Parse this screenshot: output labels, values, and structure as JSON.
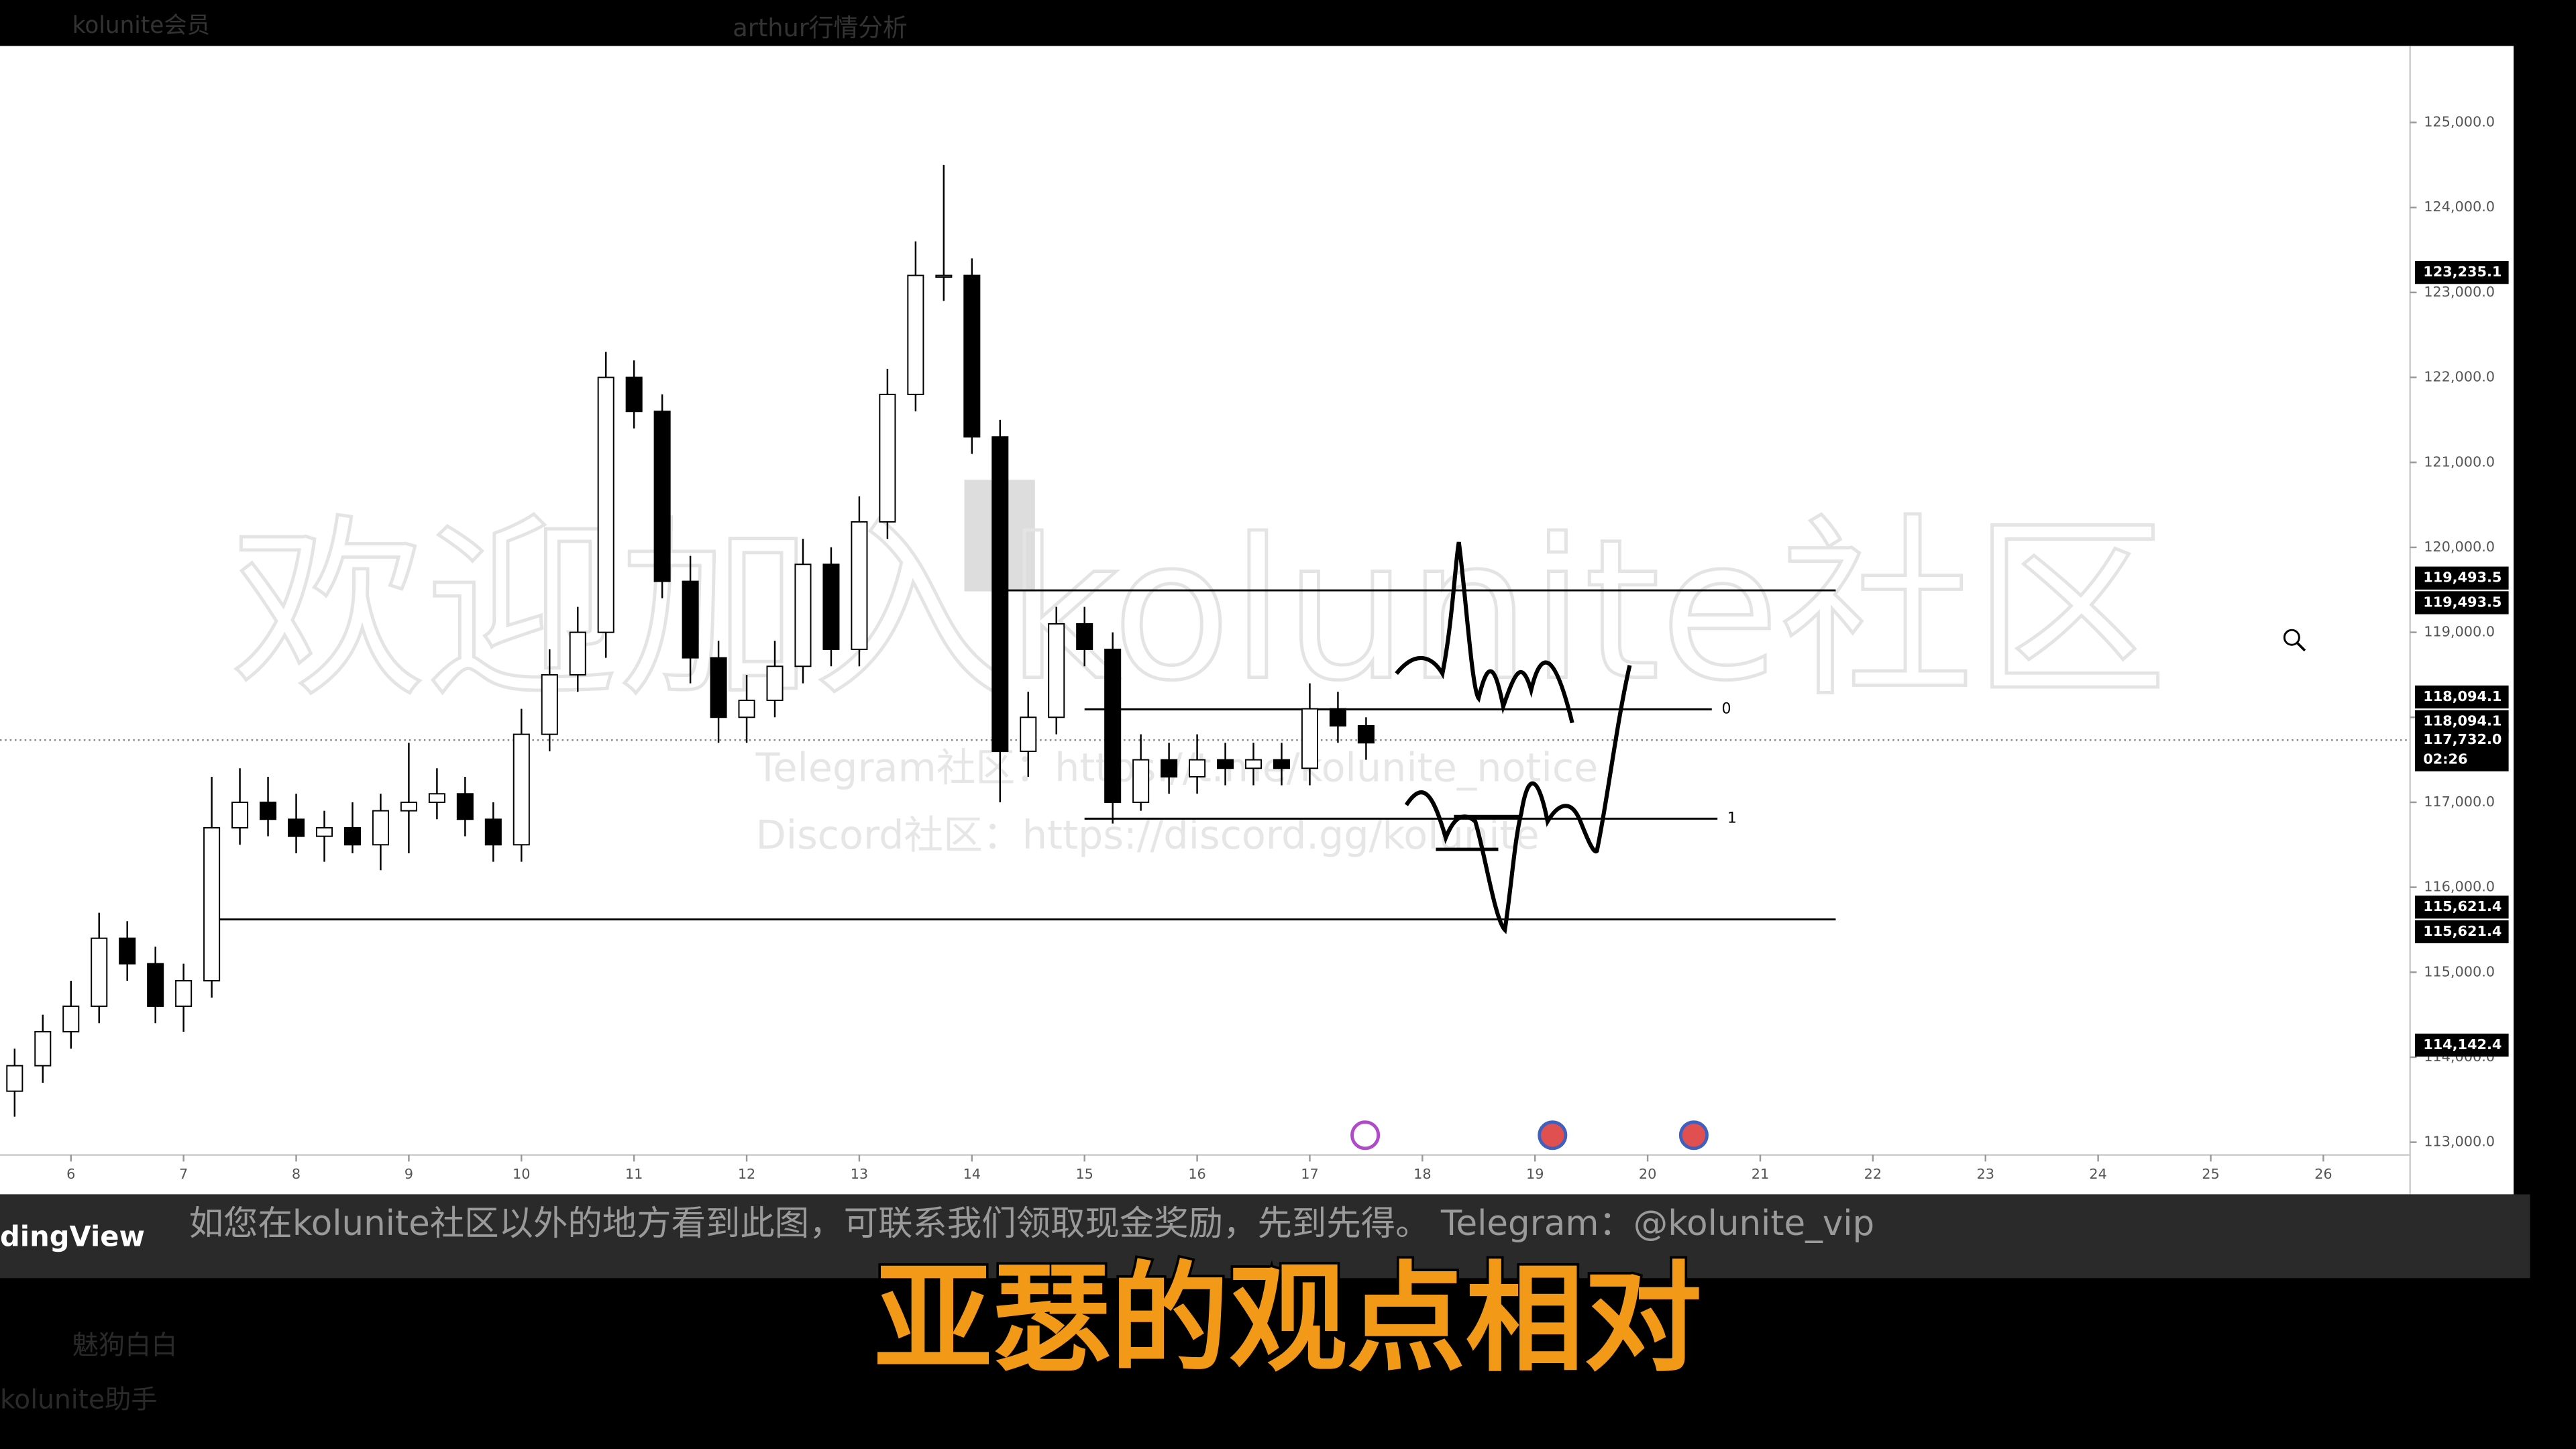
{
  "top_bar": {
    "left": "kolunite会员",
    "center": "arthur行情分析"
  },
  "chart_data": {
    "type": "candlestick",
    "watermark": "欢迎加入kolunite社区",
    "watermark_lines": [
      "Telegram社区：https://t.me/kolunite_notice",
      "Discord社区：https://discord.gg/kolunite"
    ],
    "up_color": "#ffffff",
    "down_color": "#000000",
    "border_color": "#000000",
    "xlim": [
      5.37,
      26.77
    ],
    "xticks": [
      6,
      7,
      8,
      9,
      10,
      11,
      12,
      13,
      14,
      15,
      16,
      17,
      18,
      19,
      20,
      21,
      22,
      23,
      24,
      25,
      26
    ],
    "ylim": [
      112850,
      125900
    ],
    "yticks": [
      {
        "value": 113000,
        "label": "113,000.0"
      },
      {
        "value": 114000,
        "label": "114,000.0"
      },
      {
        "value": 115000,
        "label": "115,000.0"
      },
      {
        "value": 116000,
        "label": "116,000.0"
      },
      {
        "value": 117000,
        "label": "117,000.0"
      },
      {
        "value": 118000,
        "label": "118,000.0"
      },
      {
        "value": 119000,
        "label": "119,000.0"
      },
      {
        "value": 120000,
        "label": "120,000.0"
      },
      {
        "value": 121000,
        "label": "121,000.0"
      },
      {
        "value": 122000,
        "label": "122,000.0"
      },
      {
        "value": 123000,
        "label": "123,000.0"
      },
      {
        "value": 124000,
        "label": "124,000.0"
      },
      {
        "value": 125000,
        "label": "125,000.0"
      }
    ],
    "x": [
      5.5,
      5.75,
      6.0,
      6.25,
      6.5,
      6.75,
      7.0,
      7.25,
      7.5,
      7.75,
      8.0,
      8.25,
      8.5,
      8.75,
      9.0,
      9.25,
      9.5,
      9.75,
      10.0,
      10.25,
      10.5,
      10.75,
      11.0,
      11.25,
      11.5,
      11.75,
      12.0,
      12.25,
      12.5,
      12.75,
      13.0,
      13.25,
      13.5,
      13.75,
      14.0,
      14.25,
      14.5,
      14.75,
      15.0,
      15.25,
      15.5,
      15.75,
      16.0,
      16.25,
      16.5,
      16.75,
      17.0,
      17.25,
      17.5
    ],
    "open": [
      113600,
      113900,
      114300,
      114600,
      115400,
      115100,
      114600,
      114900,
      116700,
      117000,
      116800,
      116600,
      116700,
      116500,
      116900,
      117000,
      117100,
      116800,
      116500,
      117800,
      118500,
      119000,
      122000,
      121600,
      119600,
      118700,
      118000,
      118200,
      118600,
      119800,
      118800,
      120300,
      121800,
      123200,
      123200,
      121300,
      117600,
      118000,
      119100,
      118800,
      117000,
      117500,
      117300,
      117500,
      117400,
      117500,
      117400,
      118100,
      117900
    ],
    "high": [
      114100,
      114500,
      114900,
      115700,
      115600,
      115300,
      115100,
      117300,
      117400,
      117300,
      117100,
      116900,
      117000,
      117100,
      117700,
      117400,
      117300,
      117000,
      118100,
      118800,
      119300,
      122300,
      122200,
      121800,
      119900,
      118900,
      118500,
      118900,
      120100,
      120000,
      120600,
      122100,
      123600,
      124500,
      123400,
      121500,
      118300,
      119300,
      119300,
      119000,
      117800,
      117700,
      117800,
      117700,
      117700,
      117700,
      118400,
      118300,
      118000
    ],
    "low": [
      113300,
      113700,
      114100,
      114400,
      114900,
      114400,
      114300,
      114700,
      116500,
      116600,
      116400,
      116300,
      116400,
      116200,
      116400,
      116800,
      116600,
      116300,
      116300,
      117600,
      118300,
      118700,
      121400,
      119400,
      118400,
      117700,
      117700,
      118000,
      118400,
      118600,
      118600,
      120100,
      121600,
      122900,
      121100,
      117000,
      117300,
      117800,
      118600,
      116750,
      116900,
      117100,
      117100,
      117200,
      117200,
      117200,
      117200,
      117700,
      117500
    ],
    "close": [
      113900,
      114300,
      114600,
      115400,
      115100,
      114600,
      114900,
      116700,
      117000,
      116800,
      116600,
      116700,
      116500,
      116900,
      117000,
      117100,
      116800,
      116500,
      117800,
      118500,
      119000,
      122000,
      121600,
      119600,
      118700,
      118000,
      118200,
      118600,
      119800,
      118800,
      120300,
      121800,
      123200,
      123200,
      121300,
      117600,
      118000,
      119100,
      118800,
      117000,
      117500,
      117300,
      117500,
      117400,
      117500,
      117400,
      118100,
      117900,
      117700
    ],
    "levels": [
      {
        "value": 119493.5,
        "start": 14.2,
        "end": 21.67
      },
      {
        "value": 118094.1,
        "start": 15.0,
        "end": 20.57,
        "label": "0"
      },
      {
        "value": 116807,
        "start": 15.0,
        "end": 20.62,
        "label": "1"
      },
      {
        "value": 115621.4,
        "start": 7.2,
        "end": 21.67
      }
    ],
    "current_price": 117732.0,
    "countdown": "02:26",
    "price_labels": [
      {
        "value": 123235.1,
        "label": "123,235.1"
      },
      {
        "value": 119493.5,
        "label": "119,493.5"
      },
      {
        "value": 119493.5,
        "label": "119,493.5"
      },
      {
        "value": 118094.1,
        "label": "118,094.1"
      },
      {
        "value": 118094.1,
        "label": "118,094.1"
      },
      {
        "value": 117732.0,
        "label": "117,732.0"
      },
      {
        "value": 115621.4,
        "label": "115,621.4"
      },
      {
        "value": 115621.4,
        "label": "115,621.4"
      },
      {
        "value": 114142.4,
        "label": "114,142.4"
      }
    ]
  },
  "bottom_bar": {
    "brand": "dingView",
    "notice": "如您在kolunite社区以外的地方看到此图，可联系我们领取现金奖励，先到先得。 Telegram：@kolunite_vip"
  },
  "caption": "亚瑟的观点相对",
  "sidebar": [
    "魅狗白白",
    "kolunite助手"
  ]
}
